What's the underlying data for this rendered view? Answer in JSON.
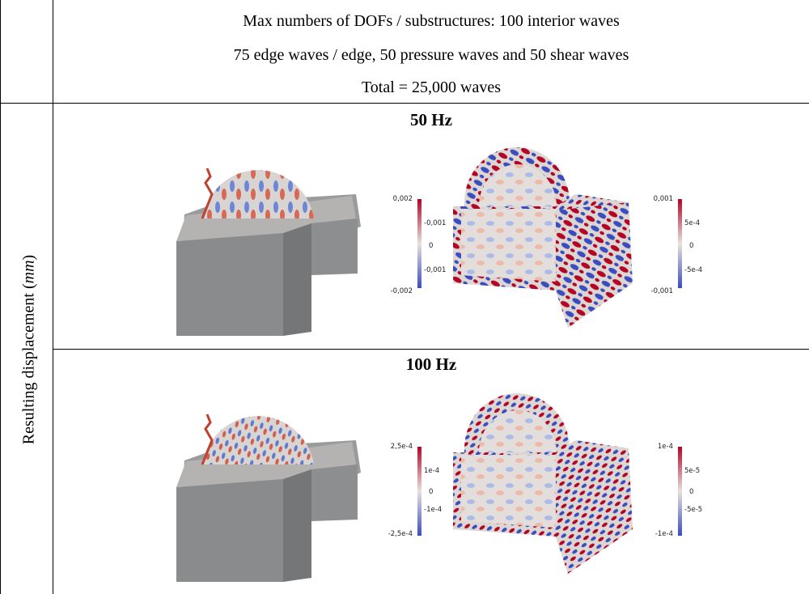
{
  "header": {
    "line1": "Max numbers of DOFs / substructures: 100 interior waves",
    "line2": "75 edge waves / edge, 50 pressure waves and 50 shear waves",
    "line3": "Total = 25,000 waves"
  },
  "row_label": {
    "prefix": "Resulting displacement (",
    "unit": "mm",
    "suffix": ")"
  },
  "panels": [
    {
      "frequency": "50 Hz",
      "colorbar_left": {
        "max": "0,002",
        "upper": "-0,001",
        "mid": "0",
        "lower": "-0,001",
        "min": "-0,002"
      },
      "colorbar_right": {
        "max": "0,001",
        "upper": "5e-4",
        "mid": "0",
        "lower": "-5e-4",
        "min": "-0,001"
      }
    },
    {
      "frequency": "100 Hz",
      "colorbar_left": {
        "max": "2,5e-4",
        "upper": "1e-4",
        "mid": "0",
        "lower": "-1e-4",
        "min": "-2,5e-4"
      },
      "colorbar_right": {
        "max": "1e-4",
        "upper": "5e-5",
        "mid": "0",
        "lower": "-5e-5",
        "min": "-1e-4"
      }
    }
  ],
  "colors": {
    "red": "#b40426",
    "blue": "#3b4cc0",
    "neutral": "#dcdad6",
    "grey": "#8f9090"
  }
}
